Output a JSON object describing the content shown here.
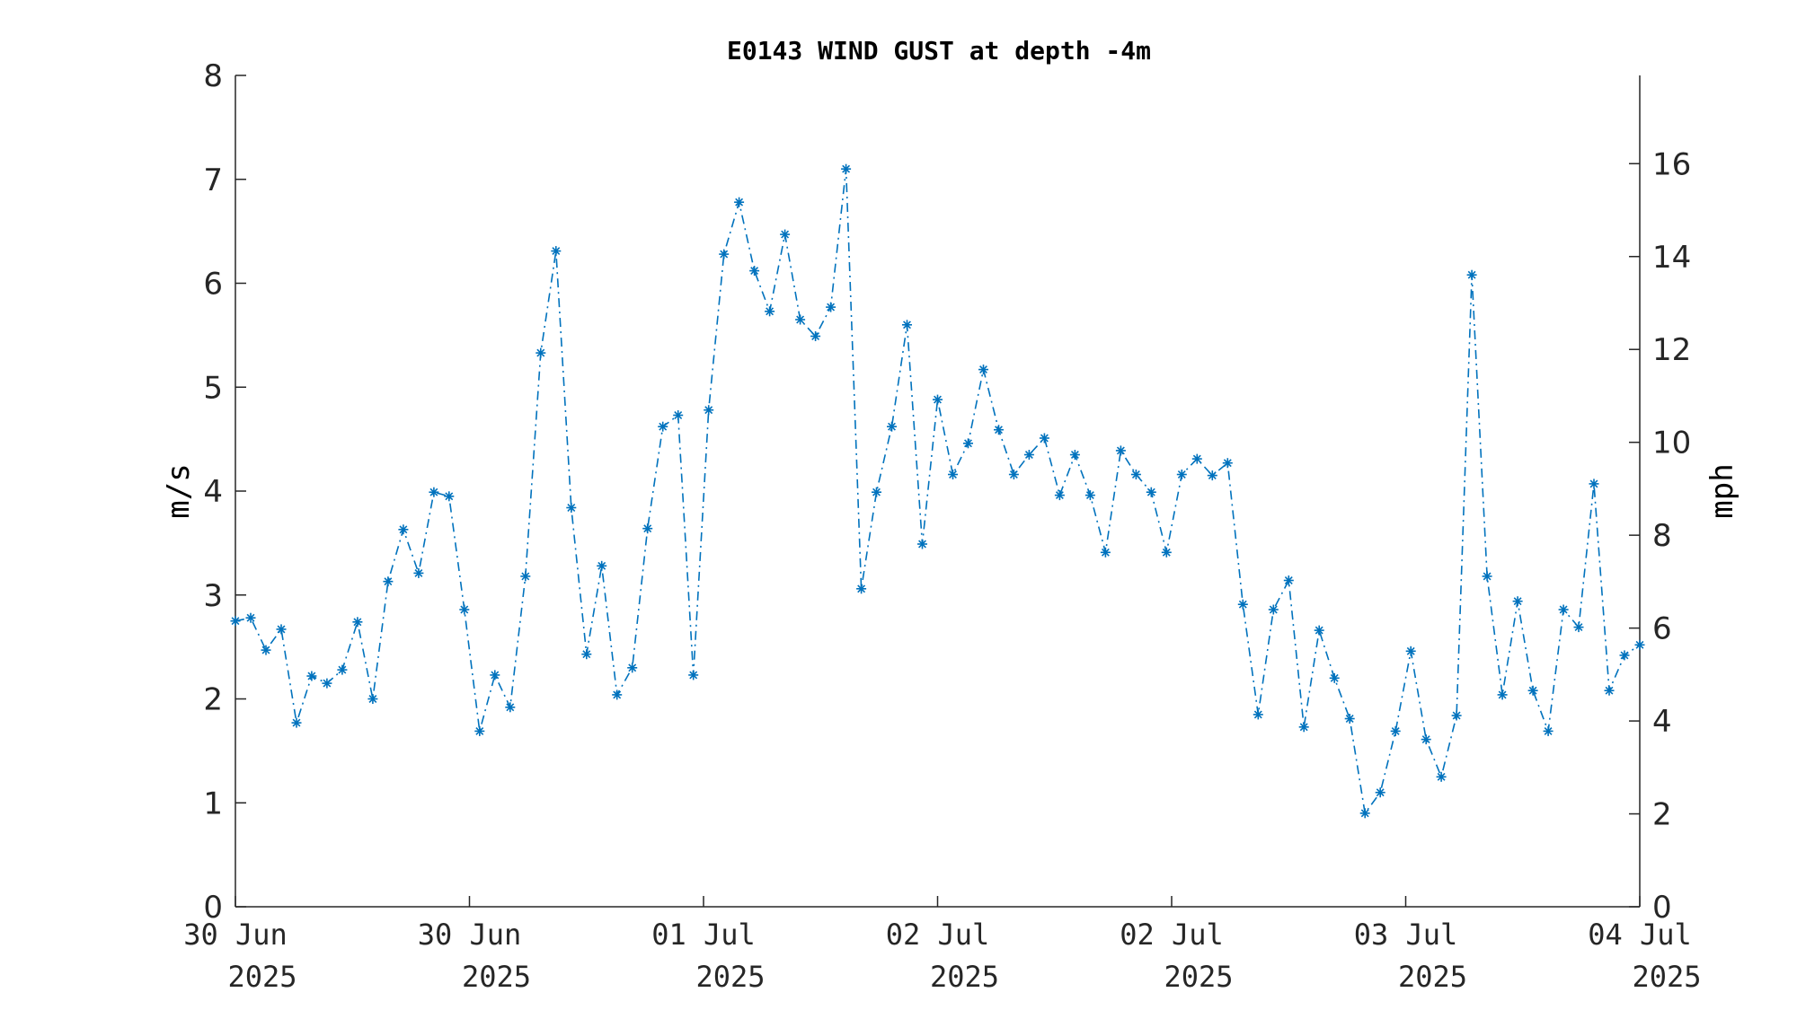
{
  "chart_data": {
    "type": "line",
    "title": "E0143 WIND GUST at depth -4m",
    "ylabel": "m/s",
    "ylabel_right": "mph",
    "ylim": [
      0,
      8
    ],
    "ylim_right": [
      0,
      17.9
    ],
    "yticks": [
      0,
      1,
      2,
      3,
      4,
      5,
      6,
      7,
      8
    ],
    "yticks_right": [
      0,
      2,
      4,
      6,
      8,
      10,
      12,
      14,
      16
    ],
    "x_ticks": [
      {
        "line1": "30 Jun",
        "line2": "2025"
      },
      {
        "line1": "30 Jun",
        "line2": "2025"
      },
      {
        "line1": "01 Jul",
        "line2": "2025"
      },
      {
        "line1": "02 Jul",
        "line2": "2025"
      },
      {
        "line1": "02 Jul",
        "line2": "2025"
      },
      {
        "line1": "03 Jul",
        "line2": "2025"
      },
      {
        "line1": "04 Jul",
        "line2": "2025"
      }
    ],
    "line_style": "dash-dot",
    "marker": "asterisk",
    "series_color": "#0072BD",
    "grid": false,
    "series": [
      {
        "values": [
          2.75,
          2.78,
          2.47,
          2.67,
          1.77,
          2.22,
          2.15,
          2.28,
          2.74,
          2.0,
          3.13,
          3.63,
          3.21,
          3.99,
          3.95,
          2.86,
          1.69,
          2.23,
          1.92,
          3.18,
          5.33,
          6.31,
          3.84,
          2.43,
          3.28,
          2.04,
          2.3,
          3.64,
          4.62,
          4.73,
          2.23,
          4.78,
          6.28,
          6.78,
          6.12,
          5.73,
          6.47,
          5.65,
          5.49,
          5.77,
          7.1,
          3.06,
          3.99,
          4.62,
          5.6,
          3.49,
          4.88,
          4.16,
          4.46,
          5.17,
          4.59,
          4.16,
          4.35,
          4.51,
          3.96,
          4.35,
          3.96,
          3.41,
          4.39,
          4.16,
          3.99,
          3.41,
          4.16,
          4.31,
          4.15,
          4.27,
          2.91,
          1.85,
          2.86,
          3.14,
          1.73,
          2.66,
          2.2,
          1.81,
          0.9,
          1.1,
          1.69,
          2.46,
          1.61,
          1.25,
          1.84,
          6.08,
          3.18,
          2.04,
          2.94,
          2.08,
          1.69,
          2.86,
          2.69,
          4.07,
          2.08,
          2.42,
          2.52
        ]
      }
    ]
  }
}
